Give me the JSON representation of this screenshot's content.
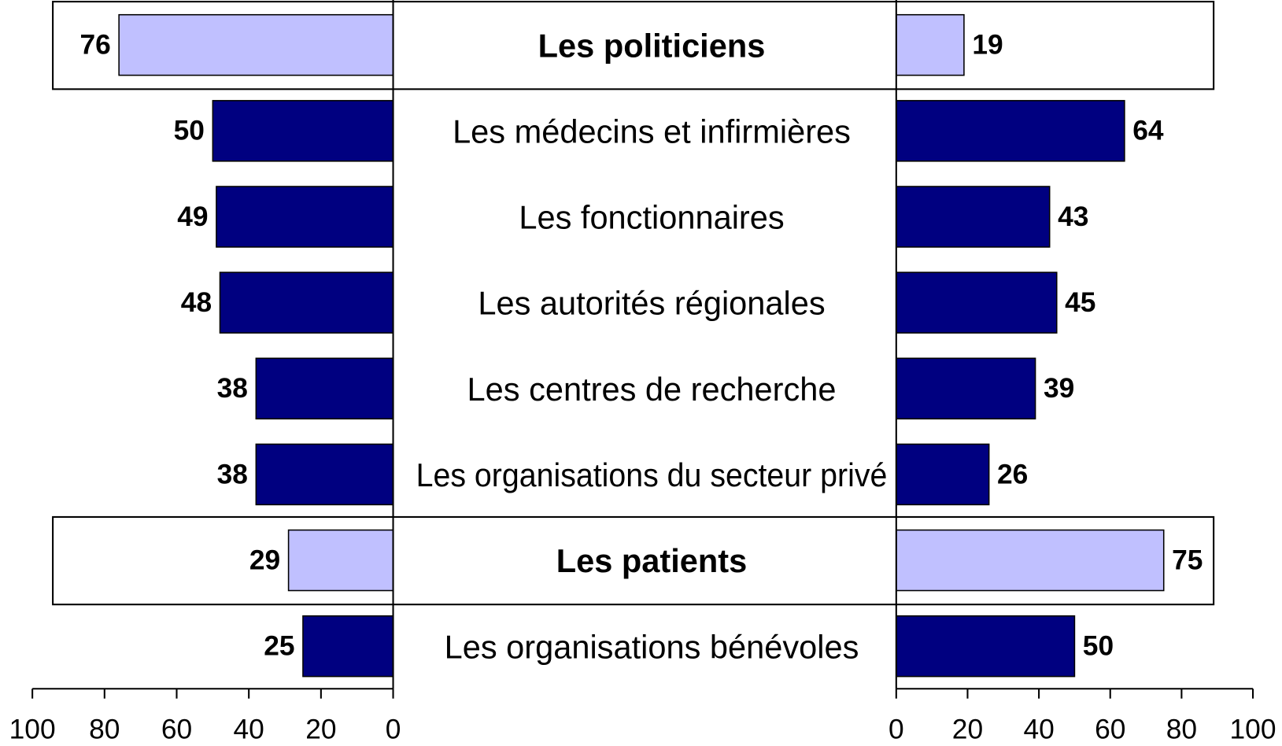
{
  "chart_data": {
    "type": "butterfly",
    "categories": [
      "Les politiciens",
      "Les médecins et infirmières",
      "Les fonctionnaires",
      "Les autorités régionales",
      "Les centres de recherche",
      "Les organisations du secteur privé",
      "Les patients",
      "Les organisations bénévoles"
    ],
    "highlighted": [
      true,
      false,
      false,
      false,
      false,
      false,
      true,
      false
    ],
    "series": [
      {
        "values": [
          76,
          50,
          49,
          48,
          38,
          38,
          29,
          25
        ],
        "colors": [
          "#c0c0ff",
          "#000080",
          "#000080",
          "#000080",
          "#000080",
          "#000080",
          "#c0c0ff",
          "#000080"
        ]
      },
      {
        "values": [
          19,
          64,
          43,
          45,
          39,
          26,
          75,
          50
        ],
        "colors": [
          "#c0c0ff",
          "#000080",
          "#000080",
          "#000080",
          "#000080",
          "#000080",
          "#c0c0ff",
          "#000080"
        ]
      }
    ],
    "xlim": [
      0,
      100
    ],
    "xticks": [
      0,
      20,
      40,
      60,
      80,
      100
    ]
  }
}
